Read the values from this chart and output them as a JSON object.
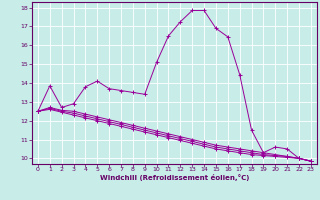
{
  "xlabel": "Windchill (Refroidissement éolien,°C)",
  "background_color": "#c8ece8",
  "line_color": "#990099",
  "xlim": [
    -0.5,
    23.5
  ],
  "ylim": [
    9.7,
    18.3
  ],
  "xticks": [
    0,
    1,
    2,
    3,
    4,
    5,
    6,
    7,
    8,
    9,
    10,
    11,
    12,
    13,
    14,
    15,
    16,
    17,
    18,
    19,
    20,
    21,
    22,
    23
  ],
  "yticks": [
    10,
    11,
    12,
    13,
    14,
    15,
    16,
    17,
    18
  ],
  "curve1_x": [
    0,
    1,
    2,
    3,
    4,
    5,
    6,
    7,
    8,
    9,
    10,
    11,
    12,
    13,
    14,
    15,
    16,
    17,
    18,
    19,
    20,
    21,
    22,
    23
  ],
  "curve1_y": [
    12.5,
    13.85,
    12.7,
    12.9,
    13.8,
    14.1,
    13.7,
    13.6,
    13.5,
    13.4,
    15.1,
    16.5,
    17.25,
    17.85,
    17.85,
    16.9,
    16.45,
    14.45,
    11.5,
    10.3,
    10.6,
    10.5,
    10.0,
    9.85
  ],
  "curve2_x": [
    0,
    1,
    2,
    3,
    4,
    5,
    6,
    7,
    8,
    9,
    10,
    11,
    12,
    13,
    14,
    15,
    16,
    17,
    18,
    19,
    20,
    21,
    22,
    23
  ],
  "curve2_y": [
    12.5,
    12.7,
    12.55,
    12.5,
    12.35,
    12.2,
    12.05,
    11.9,
    11.75,
    11.6,
    11.45,
    11.3,
    11.15,
    11.0,
    10.85,
    10.7,
    10.6,
    10.5,
    10.4,
    10.3,
    10.2,
    10.1,
    10.0,
    9.85
  ],
  "curve3_x": [
    0,
    1,
    2,
    3,
    4,
    5,
    6,
    7,
    8,
    9,
    10,
    11,
    12,
    13,
    14,
    15,
    16,
    17,
    18,
    19,
    20,
    21,
    22,
    23
  ],
  "curve3_y": [
    12.5,
    12.65,
    12.5,
    12.4,
    12.25,
    12.1,
    11.95,
    11.8,
    11.65,
    11.5,
    11.35,
    11.2,
    11.05,
    10.9,
    10.75,
    10.6,
    10.5,
    10.4,
    10.3,
    10.2,
    10.15,
    10.1,
    10.0,
    9.85
  ],
  "curve4_x": [
    0,
    1,
    2,
    3,
    4,
    5,
    6,
    7,
    8,
    9,
    10,
    11,
    12,
    13,
    14,
    15,
    16,
    17,
    18,
    19,
    20,
    21,
    22,
    23
  ],
  "curve4_y": [
    12.5,
    12.6,
    12.45,
    12.3,
    12.15,
    12.0,
    11.85,
    11.7,
    11.55,
    11.4,
    11.25,
    11.1,
    10.95,
    10.8,
    10.65,
    10.5,
    10.4,
    10.3,
    10.2,
    10.15,
    10.1,
    10.05,
    10.0,
    9.85
  ]
}
